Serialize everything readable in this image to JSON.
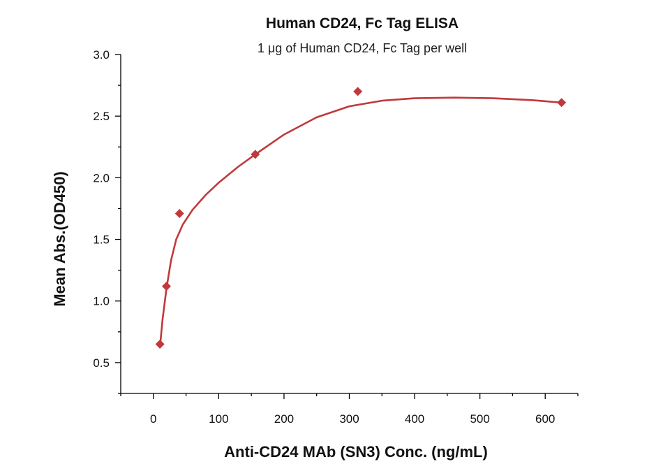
{
  "chart_data": {
    "type": "scatter",
    "title": "Human CD24, Fc Tag ELISA",
    "subtitle": "1 μg of Human CD24, Fc Tag per well",
    "xlabel": "Anti-CD24 MAb (SN3) Conc. (ng/mL)",
    "ylabel": "Mean Abs.(OD450)",
    "xlim": [
      -50,
      650
    ],
    "ylim": [
      0.25,
      3.0
    ],
    "xticks": [
      0,
      100,
      200,
      300,
      400,
      500,
      600
    ],
    "xtick_labels": [
      "0",
      "100",
      "200",
      "300",
      "400",
      "500",
      "600"
    ],
    "yticks": [
      0.5,
      1.0,
      1.5,
      2.0,
      2.5,
      3.0
    ],
    "ytick_labels": [
      "0.5",
      "1.0",
      "1.5",
      "2.0",
      "2.5",
      "3.0"
    ],
    "grid": false,
    "series": [
      {
        "points": [
          {
            "x": 10,
            "y": 0.65
          },
          {
            "x": 20,
            "y": 1.12
          },
          {
            "x": 40,
            "y": 1.71
          },
          {
            "x": 156,
            "y": 2.19
          },
          {
            "x": 313,
            "y": 2.7
          },
          {
            "x": 625,
            "y": 2.61
          }
        ],
        "fit_curve": [
          {
            "x": 10,
            "y": 0.62
          },
          {
            "x": 14,
            "y": 0.85
          },
          {
            "x": 20,
            "y": 1.1
          },
          {
            "x": 27,
            "y": 1.33
          },
          {
            "x": 35,
            "y": 1.5
          },
          {
            "x": 45,
            "y": 1.62
          },
          {
            "x": 60,
            "y": 1.74
          },
          {
            "x": 80,
            "y": 1.86
          },
          {
            "x": 100,
            "y": 1.96
          },
          {
            "x": 130,
            "y": 2.09
          },
          {
            "x": 156,
            "y": 2.19
          },
          {
            "x": 200,
            "y": 2.35
          },
          {
            "x": 250,
            "y": 2.49
          },
          {
            "x": 300,
            "y": 2.58
          },
          {
            "x": 350,
            "y": 2.625
          },
          {
            "x": 400,
            "y": 2.645
          },
          {
            "x": 460,
            "y": 2.65
          },
          {
            "x": 520,
            "y": 2.645
          },
          {
            "x": 580,
            "y": 2.63
          },
          {
            "x": 625,
            "y": 2.61
          }
        ],
        "color": "#c0393b"
      }
    ]
  }
}
